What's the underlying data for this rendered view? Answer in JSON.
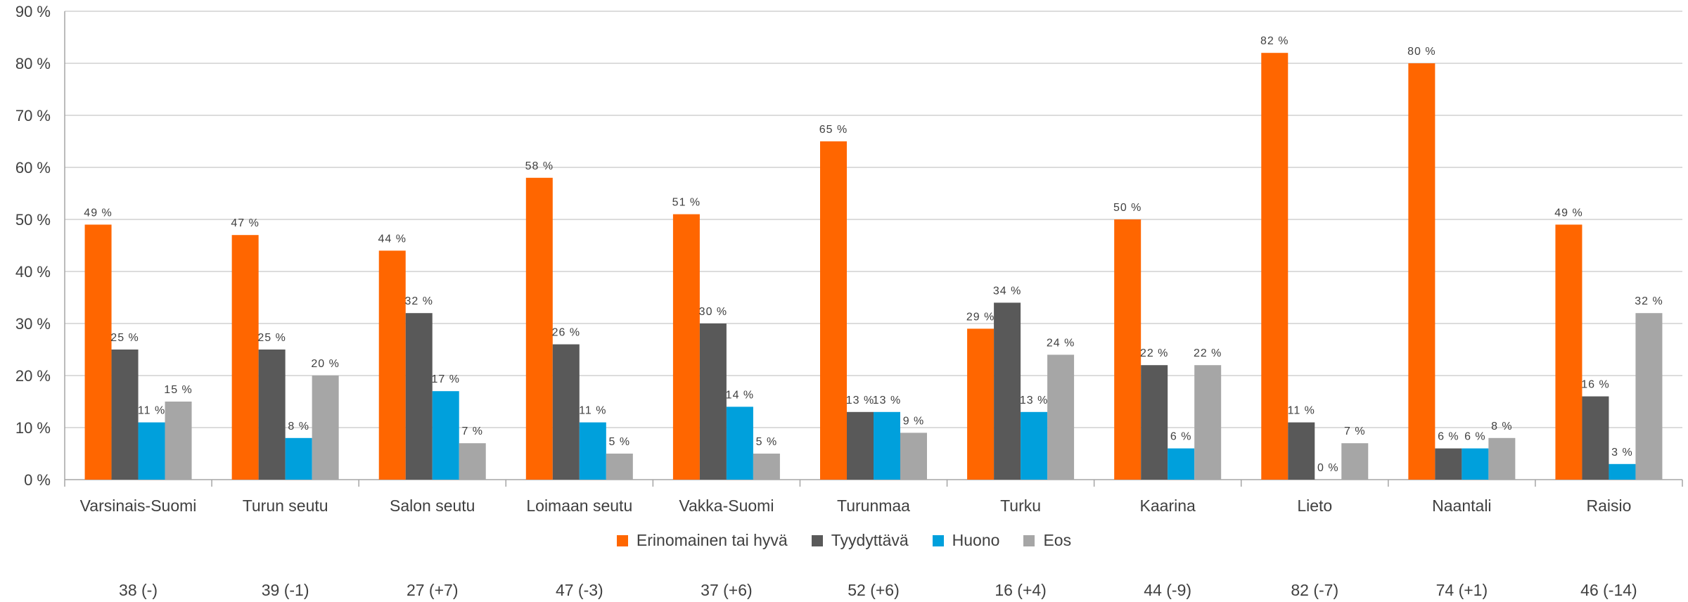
{
  "chart_data": {
    "type": "bar",
    "categories": [
      "Varsinais-Suomi",
      "Turun seutu",
      "Salon seutu",
      "Loimaan seutu",
      "Vakka-Suomi",
      "Turunmaa",
      "Turku",
      "Kaarina",
      "Lieto",
      "Naantali",
      "Raisio"
    ],
    "series": [
      {
        "name": "Erinomainen tai hyvä",
        "color": "#FF6600",
        "values": [
          49,
          47,
          44,
          58,
          51,
          65,
          29,
          50,
          82,
          80,
          49
        ]
      },
      {
        "name": "Tyydyttävä",
        "color": "#595959",
        "values": [
          25,
          25,
          32,
          26,
          30,
          13,
          34,
          22,
          11,
          6,
          16
        ]
      },
      {
        "name": "Huono",
        "color": "#00A0DC",
        "values": [
          11,
          8,
          17,
          11,
          14,
          13,
          13,
          6,
          0,
          6,
          3
        ]
      },
      {
        "name": "Eos",
        "color": "#A6A6A6",
        "values": [
          15,
          20,
          7,
          5,
          5,
          9,
          24,
          22,
          7,
          8,
          32
        ]
      }
    ],
    "ylim": [
      0,
      90
    ],
    "yticks": [
      "0 %",
      "10 %",
      "20 %",
      "30 %",
      "40 %",
      "50 %",
      "60 %",
      "70 %",
      "80 %",
      "90 %"
    ],
    "value_suffix": " %",
    "grid": true,
    "legend_position": "bottom"
  },
  "footer_values": [
    "38 (-)",
    "39 (-1)",
    "27 (+7)",
    "47 (-3)",
    "37 (+6)",
    "52 (+6)",
    "16 (+4)",
    "44 (-9)",
    "82 (-7)",
    "74 (+1)",
    "46 (-14)"
  ]
}
